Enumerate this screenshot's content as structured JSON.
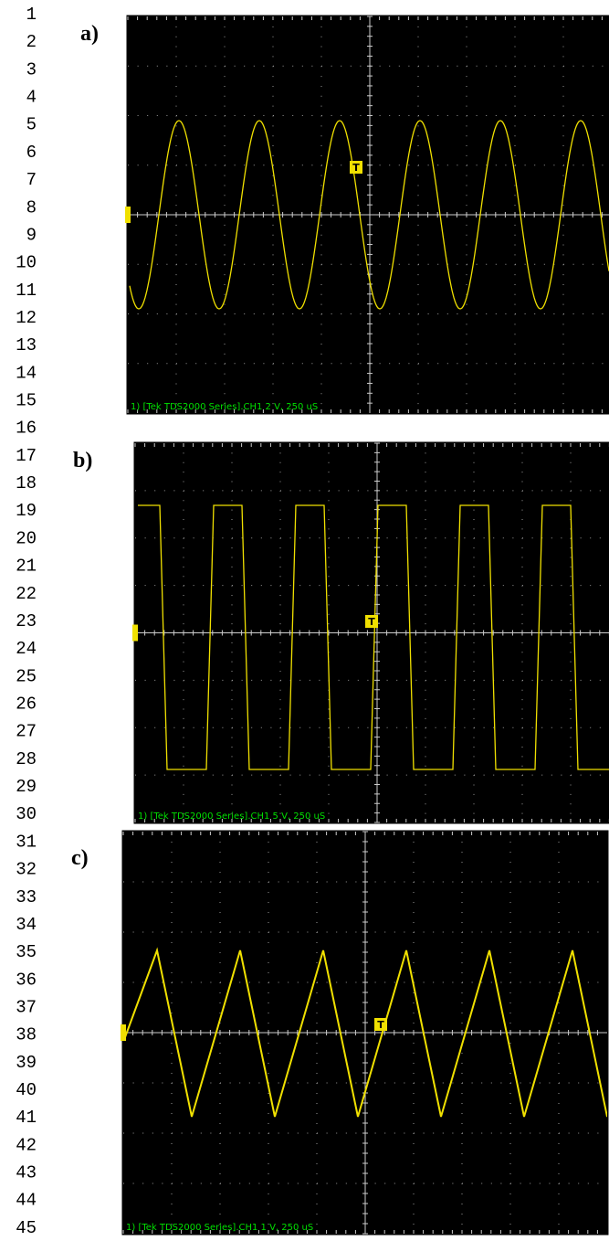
{
  "line_numbers": [
    "1",
    "2",
    "3",
    "4",
    "5",
    "6",
    "7",
    "8",
    "9",
    "10",
    "11",
    "12",
    "13",
    "14",
    "15",
    "16",
    "17",
    "18",
    "19",
    "20",
    "21",
    "22",
    "23",
    "24",
    "25",
    "26",
    "27",
    "28",
    "29",
    "30",
    "31",
    "32",
    "33",
    "34",
    "35",
    "36",
    "37",
    "38",
    "39",
    "40",
    "41",
    "42",
    "43",
    "44",
    "45"
  ],
  "panels": [
    {
      "label": "a)",
      "caption": "1) [Tek TDS2000 Series].CH1 2 V, 250 uS",
      "trigger": "T"
    },
    {
      "label": "b)",
      "caption": "1) [Tek TDS2000 Series].CH1 5 V, 250 uS",
      "trigger": "T"
    },
    {
      "label": "c)",
      "caption": "1) [Tek TDS2000 Series].CH1 1 V, 250 uS",
      "trigger": "T"
    }
  ]
}
